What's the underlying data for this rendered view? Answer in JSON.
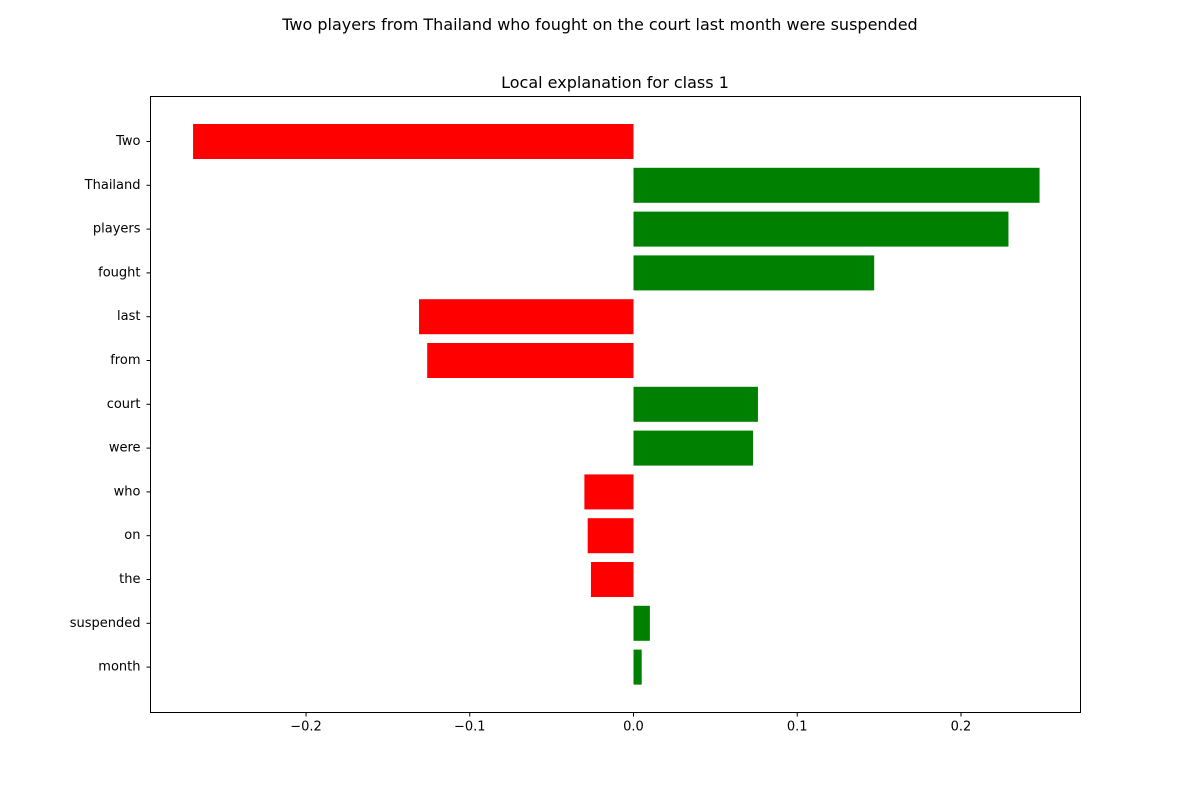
{
  "chart_data": {
    "type": "bar",
    "orientation": "horizontal",
    "suptitle": "Two players from Thailand who fought on the court last month were suspended",
    "title": "Local explanation for class 1",
    "xlabel": "",
    "ylabel": "",
    "categories": [
      "Two",
      "Thailand",
      "players",
      "fought",
      "last",
      "from",
      "court",
      "were",
      "who",
      "on",
      "the",
      "suspended",
      "month"
    ],
    "values": [
      -0.269,
      0.248,
      0.229,
      0.147,
      -0.131,
      -0.126,
      0.076,
      0.073,
      -0.03,
      -0.028,
      -0.026,
      0.01,
      0.005
    ],
    "xlim": [
      -0.295,
      0.273
    ],
    "xticks": [
      -0.2,
      -0.1,
      0.0,
      0.1,
      0.2
    ],
    "xtick_labels": [
      "−0.2",
      "−0.1",
      "0.0",
      "0.1",
      "0.2"
    ],
    "positive_color": "#008000",
    "negative_color": "#ff0000",
    "grid": false,
    "legend": "none"
  }
}
